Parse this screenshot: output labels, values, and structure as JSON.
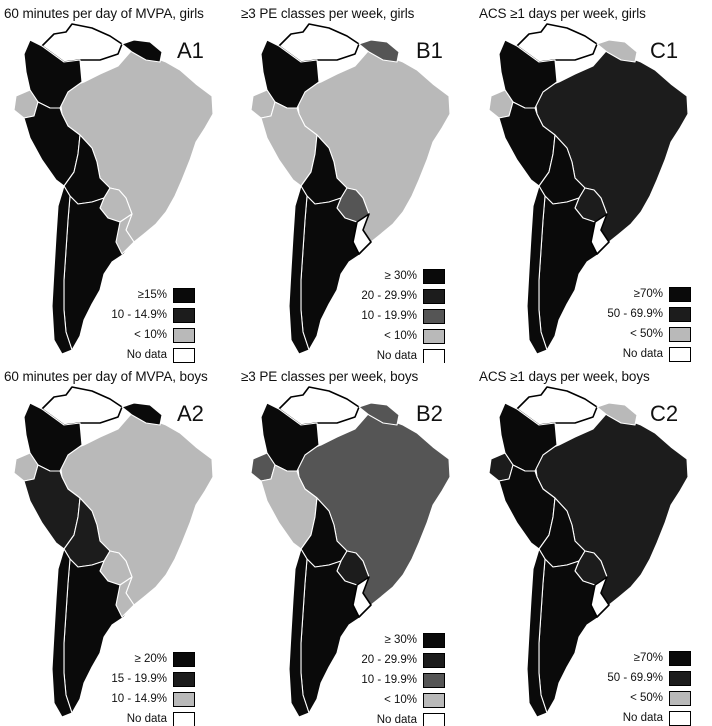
{
  "colors": {
    "black": "#0a0a0a",
    "dark": "#1c1c1c",
    "mid": "#555555",
    "light": "#b9b9b9",
    "none": "#ffffff",
    "border": "#ffffff",
    "outline": "#000000"
  },
  "panels": [
    {
      "id": "A1",
      "title": "60 minutes per day of  MVPA, girls",
      "tag": "A1",
      "legend": [
        {
          "label": "≥15%",
          "color": "black"
        },
        {
          "label": "10 - 14.9%",
          "color": "dark"
        },
        {
          "label": "< 10%",
          "color": "light"
        },
        {
          "label": "No data",
          "color": "none"
        }
      ],
      "regions": {
        "venezuela": "none",
        "guianas": "black",
        "colombia": "black",
        "ecuador": "light",
        "peru": "black",
        "brazil": "light",
        "bolivia": "black",
        "paraguay": "light",
        "chile": "black",
        "argentina": "black",
        "uruguay": "light"
      }
    },
    {
      "id": "B1",
      "title": "≥3 PE classes per week, girls",
      "tag": "B1",
      "legend": [
        {
          "label": "≥ 30%",
          "color": "black"
        },
        {
          "label": "20 - 29.9%",
          "color": "dark"
        },
        {
          "label": "10 - 19.9%",
          "color": "mid"
        },
        {
          "label": "< 10%",
          "color": "light"
        },
        {
          "label": "No data",
          "color": "none"
        }
      ],
      "regions": {
        "venezuela": "none",
        "guianas": "mid",
        "colombia": "black",
        "ecuador": "light",
        "peru": "light",
        "brazil": "light",
        "bolivia": "black",
        "paraguay": "mid",
        "chile": "black",
        "argentina": "black",
        "uruguay": "none"
      }
    },
    {
      "id": "C1",
      "title": "ACS ≥1 days per week, girls",
      "tag": "C1",
      "legend": [
        {
          "label": "≥70%",
          "color": "black"
        },
        {
          "label": "50 - 69.9%",
          "color": "dark"
        },
        {
          "label": "< 50%",
          "color": "light"
        },
        {
          "label": "No data",
          "color": "none"
        }
      ],
      "regions": {
        "venezuela": "none",
        "guianas": "light",
        "colombia": "black",
        "ecuador": "light",
        "peru": "black",
        "brazil": "dark",
        "bolivia": "black",
        "paraguay": "dark",
        "chile": "black",
        "argentina": "black",
        "uruguay": "none"
      }
    },
    {
      "id": "A2",
      "title": "60 minutes per day of  MVPA, boys",
      "tag": "A2",
      "legend": [
        {
          "label": "≥ 20%",
          "color": "black"
        },
        {
          "label": "15 - 19.9%",
          "color": "dark"
        },
        {
          "label": "10 - 14.9%",
          "color": "light"
        },
        {
          "label": "No data",
          "color": "none"
        }
      ],
      "regions": {
        "venezuela": "none",
        "guianas": "black",
        "colombia": "black",
        "ecuador": "light",
        "peru": "dark",
        "brazil": "light",
        "bolivia": "dark",
        "paraguay": "light",
        "chile": "black",
        "argentina": "black",
        "uruguay": "light"
      }
    },
    {
      "id": "B2",
      "title": "≥3 PE classes per week, boys",
      "tag": "B2",
      "legend": [
        {
          "label": "≥ 30%",
          "color": "black"
        },
        {
          "label": "20 - 29.9%",
          "color": "dark"
        },
        {
          "label": "10 - 19.9%",
          "color": "mid"
        },
        {
          "label": "< 10%",
          "color": "light"
        },
        {
          "label": "No data",
          "color": "none"
        }
      ],
      "regions": {
        "venezuela": "none",
        "guianas": "mid",
        "colombia": "black",
        "ecuador": "mid",
        "peru": "light",
        "brazil": "mid",
        "bolivia": "black",
        "paraguay": "dark",
        "chile": "black",
        "argentina": "black",
        "uruguay": "none"
      }
    },
    {
      "id": "C2",
      "title": "ACS ≥1 days per week, boys",
      "tag": "C2",
      "legend": [
        {
          "label": "≥70%",
          "color": "black"
        },
        {
          "label": "50 - 69.9%",
          "color": "dark"
        },
        {
          "label": "< 50%",
          "color": "light"
        },
        {
          "label": "No data",
          "color": "none"
        }
      ],
      "regions": {
        "venezuela": "none",
        "guianas": "light",
        "colombia": "black",
        "ecuador": "dark",
        "peru": "black",
        "brazil": "dark",
        "bolivia": "black",
        "paraguay": "dark",
        "chile": "black",
        "argentina": "black",
        "uruguay": "none"
      }
    }
  ]
}
